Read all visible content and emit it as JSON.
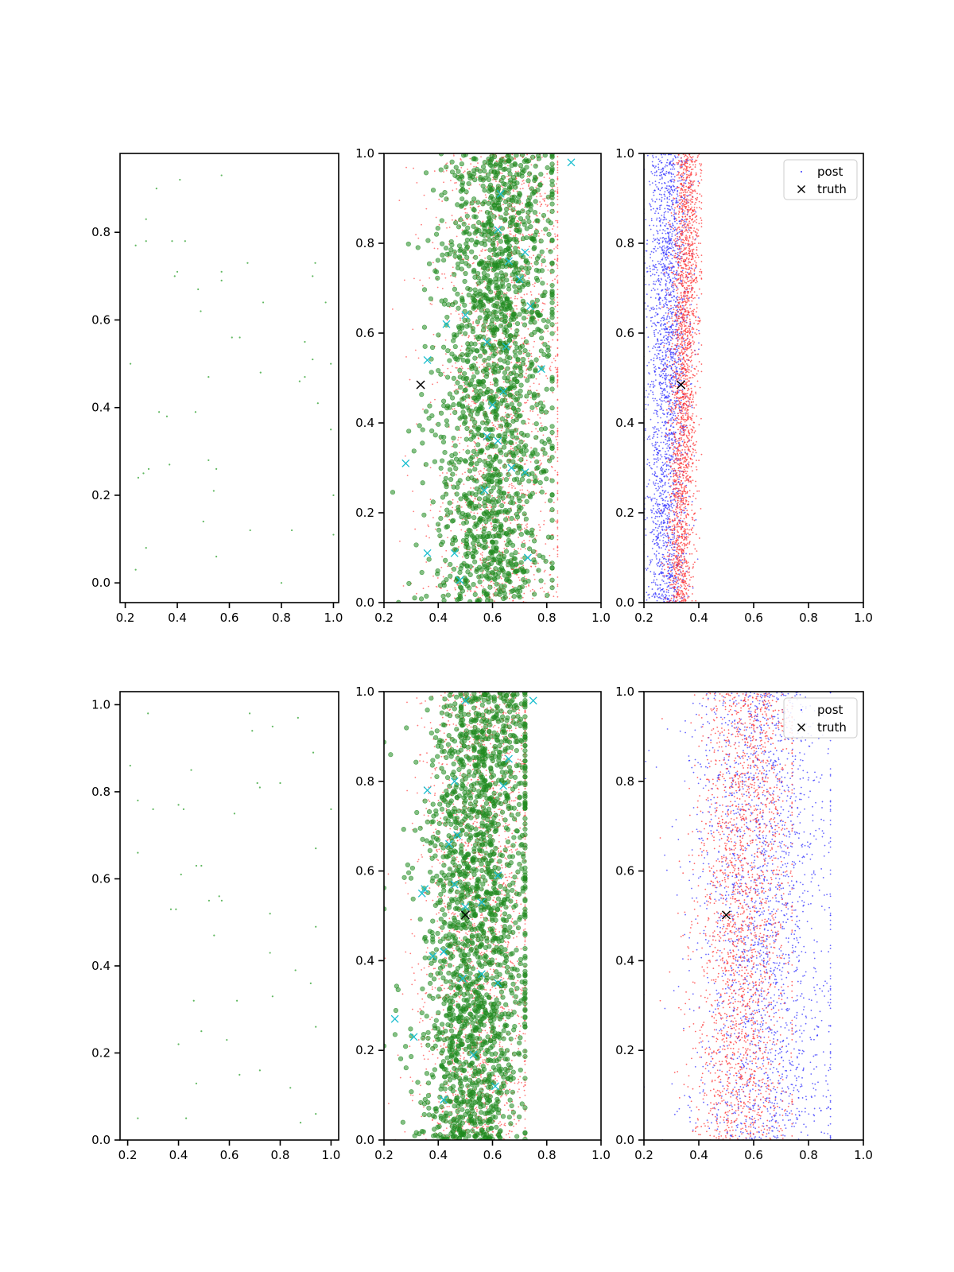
{
  "figure": {
    "grid": false
  },
  "chart_data": [
    {
      "type": "scatter",
      "panel": "top-left",
      "title": "",
      "xlabel": "",
      "ylabel": "",
      "xlim": [
        0.18,
        1.02
      ],
      "ylim": [
        -0.045,
        0.98
      ],
      "xticks": [
        "0.2",
        "0.4",
        "0.6",
        "0.8",
        "1.0"
      ],
      "yticks": [
        "0.0",
        "0.2",
        "0.4",
        "0.6",
        "0.8"
      ],
      "series": [
        {
          "color": "#2ca02c",
          "marker": "dot",
          "size": 1.1,
          "points": [
            [
              0.41,
              0.92
            ],
            [
              0.57,
              0.93
            ],
            [
              0.32,
              0.9
            ],
            [
              0.28,
              0.83
            ],
            [
              0.24,
              0.77
            ],
            [
              0.28,
              0.78
            ],
            [
              0.38,
              0.78
            ],
            [
              0.43,
              0.78
            ],
            [
              0.4,
              0.71
            ],
            [
              0.39,
              0.7
            ],
            [
              0.57,
              0.71
            ],
            [
              0.57,
              0.69
            ],
            [
              0.67,
              0.73
            ],
            [
              0.93,
              0.73
            ],
            [
              0.92,
              0.7
            ],
            [
              0.97,
              0.64
            ],
            [
              0.48,
              0.67
            ],
            [
              0.49,
              0.62
            ],
            [
              0.73,
              0.64
            ],
            [
              0.61,
              0.56
            ],
            [
              0.64,
              0.56
            ],
            [
              0.89,
              0.55
            ],
            [
              0.22,
              0.5
            ],
            [
              0.92,
              0.51
            ],
            [
              0.99,
              0.5
            ],
            [
              0.52,
              0.47
            ],
            [
              0.72,
              0.48
            ],
            [
              0.89,
              0.47
            ],
            [
              0.87,
              0.46
            ],
            [
              0.33,
              0.39
            ],
            [
              0.36,
              0.38
            ],
            [
              0.47,
              0.39
            ],
            [
              0.94,
              0.41
            ],
            [
              0.99,
              0.35
            ],
            [
              0.37,
              0.27
            ],
            [
              0.29,
              0.26
            ],
            [
              0.27,
              0.25
            ],
            [
              0.25,
              0.24
            ],
            [
              0.52,
              0.28
            ],
            [
              0.55,
              0.26
            ],
            [
              0.54,
              0.21
            ],
            [
              1.0,
              0.2
            ],
            [
              0.5,
              0.14
            ],
            [
              0.68,
              0.12
            ],
            [
              0.84,
              0.12
            ],
            [
              0.28,
              0.08
            ],
            [
              0.55,
              0.06
            ],
            [
              1.0,
              0.11
            ],
            [
              0.24,
              0.03
            ],
            [
              0.8,
              0.0
            ]
          ]
        }
      ]
    },
    {
      "type": "scatter",
      "panel": "top-middle",
      "title": "",
      "xlabel": "",
      "ylabel": "",
      "xlim": [
        0.2,
        1.0
      ],
      "ylim": [
        0.0,
        1.0
      ],
      "xticks": [
        "0.2",
        "0.4",
        "0.6",
        "0.8",
        "1.0"
      ],
      "yticks": [
        "0.0",
        "0.2",
        "0.4",
        "0.6",
        "0.8",
        "1.0"
      ],
      "series": [
        {
          "color": "#ff4d4d",
          "marker": "dot",
          "size": 0.9,
          "count": 2200,
          "distribution": {
            "x_mean_bottom": 0.62,
            "x_mean_top": 0.66,
            "x_sd": 0.13,
            "x_min": 0.2,
            "x_max": 0.84
          }
        },
        {
          "color": "#1f8a1f",
          "marker": "circle",
          "size": 2.8,
          "count": 1700,
          "distribution": {
            "x_mean_bottom": 0.58,
            "x_mean_top": 0.64,
            "x_sd": 0.11,
            "x_min": 0.2,
            "x_max": 0.82
          }
        },
        {
          "color": "#17becf",
          "marker": "x",
          "size": 4.5,
          "points": [
            [
              0.89,
              0.98
            ],
            [
              0.63,
              0.91
            ],
            [
              0.62,
              0.83
            ],
            [
              0.72,
              0.78
            ],
            [
              0.66,
              0.76
            ],
            [
              0.7,
              0.72
            ],
            [
              0.5,
              0.64
            ],
            [
              0.43,
              0.62
            ],
            [
              0.74,
              0.66
            ],
            [
              0.58,
              0.58
            ],
            [
              0.65,
              0.57
            ],
            [
              0.36,
              0.54
            ],
            [
              0.78,
              0.52
            ],
            [
              0.64,
              0.47
            ],
            [
              0.6,
              0.44
            ],
            [
              0.58,
              0.37
            ],
            [
              0.62,
              0.36
            ],
            [
              0.67,
              0.3
            ],
            [
              0.72,
              0.29
            ],
            [
              0.28,
              0.31
            ],
            [
              0.36,
              0.11
            ],
            [
              0.46,
              0.11
            ],
            [
              0.48,
              0.05
            ],
            [
              0.73,
              0.1
            ],
            [
              0.57,
              0.25
            ]
          ]
        },
        {
          "color": "#000000",
          "marker": "x",
          "size": 5,
          "points": [
            [
              0.335,
              0.485
            ]
          ]
        }
      ]
    },
    {
      "type": "scatter",
      "panel": "top-right",
      "title": "",
      "xlabel": "",
      "ylabel": "",
      "xlim": [
        0.2,
        1.0
      ],
      "ylim": [
        0.0,
        1.0
      ],
      "xticks": [
        "0.2",
        "0.4",
        "0.6",
        "0.8",
        "1.0"
      ],
      "yticks": [
        "0.0",
        "0.2",
        "0.4",
        "0.6",
        "0.8",
        "1.0"
      ],
      "legend": {
        "placement": "upper right",
        "entries": [
          "post",
          "truth"
        ]
      },
      "series": [
        {
          "name": "post",
          "color": "#3333ff",
          "marker": "dot",
          "size": 0.9,
          "count": 2200,
          "distribution": {
            "x_mean_bottom": 0.28,
            "x_mean_top": 0.29,
            "x_sd": 0.04,
            "x_min": 0.2,
            "x_max": 0.4
          }
        },
        {
          "color": "#ff3333",
          "marker": "dot",
          "size": 0.9,
          "count": 2200,
          "distribution": {
            "x_mean_bottom": 0.33,
            "x_mean_top": 0.36,
            "x_sd": 0.025,
            "x_min": 0.25,
            "x_max": 0.41
          }
        },
        {
          "name": "truth",
          "color": "#000000",
          "marker": "x",
          "size": 5,
          "points": [
            [
              0.335,
              0.485
            ]
          ]
        }
      ]
    },
    {
      "type": "scatter",
      "panel": "bottom-left",
      "title": "",
      "xlabel": "",
      "ylabel": "",
      "xlim": [
        0.17,
        1.03
      ],
      "ylim": [
        0.0,
        1.03
      ],
      "xticks": [
        "0.2",
        "0.4",
        "0.6",
        "0.8",
        "1.0"
      ],
      "yticks": [
        "0.0",
        "0.2",
        "0.4",
        "0.6",
        "0.8",
        "1.0"
      ],
      "series": [
        {
          "color": "#2ca02c",
          "marker": "dot",
          "size": 1.1,
          "points": [
            [
              0.28,
              0.98
            ],
            [
              0.68,
              0.98
            ],
            [
              0.69,
              0.94
            ],
            [
              0.77,
              0.95
            ],
            [
              0.87,
              0.97
            ],
            [
              0.21,
              0.86
            ],
            [
              0.45,
              0.85
            ],
            [
              0.24,
              0.78
            ],
            [
              0.3,
              0.76
            ],
            [
              0.4,
              0.77
            ],
            [
              0.42,
              0.76
            ],
            [
              0.62,
              0.75
            ],
            [
              0.71,
              0.82
            ],
            [
              0.72,
              0.81
            ],
            [
              0.8,
              0.82
            ],
            [
              0.93,
              0.89
            ],
            [
              1.0,
              0.76
            ],
            [
              0.94,
              0.67
            ],
            [
              0.24,
              0.66
            ],
            [
              0.47,
              0.63
            ],
            [
              0.49,
              0.63
            ],
            [
              0.41,
              0.61
            ],
            [
              0.37,
              0.53
            ],
            [
              0.39,
              0.53
            ],
            [
              0.52,
              0.55
            ],
            [
              0.56,
              0.56
            ],
            [
              0.57,
              0.55
            ],
            [
              0.54,
              0.47
            ],
            [
              0.76,
              0.52
            ],
            [
              0.94,
              0.49
            ],
            [
              0.76,
              0.43
            ],
            [
              0.86,
              0.39
            ],
            [
              0.46,
              0.32
            ],
            [
              0.63,
              0.32
            ],
            [
              0.77,
              0.33
            ],
            [
              0.92,
              0.36
            ],
            [
              0.49,
              0.25
            ],
            [
              0.94,
              0.26
            ],
            [
              0.4,
              0.22
            ],
            [
              0.59,
              0.23
            ],
            [
              0.47,
              0.13
            ],
            [
              0.64,
              0.15
            ],
            [
              0.72,
              0.16
            ],
            [
              0.84,
              0.12
            ],
            [
              0.24,
              0.05
            ],
            [
              0.43,
              0.05
            ],
            [
              0.88,
              0.04
            ],
            [
              0.94,
              0.06
            ]
          ]
        }
      ]
    },
    {
      "type": "scatter",
      "panel": "bottom-middle",
      "title": "",
      "xlabel": "",
      "ylabel": "",
      "xlim": [
        0.2,
        1.0
      ],
      "ylim": [
        0.0,
        1.0
      ],
      "xticks": [
        "0.2",
        "0.4",
        "0.6",
        "0.8",
        "1.0"
      ],
      "yticks": [
        "0.0",
        "0.2",
        "0.4",
        "0.6",
        "0.8",
        "1.0"
      ],
      "series": [
        {
          "color": "#ff4d4d",
          "marker": "dot",
          "size": 0.9,
          "count": 2300,
          "distribution": {
            "x_mean_bottom": 0.53,
            "x_mean_top": 0.58,
            "x_sd": 0.11,
            "x_min": 0.2,
            "x_max": 0.72
          }
        },
        {
          "color": "#1f8a1f",
          "marker": "circle",
          "size": 2.8,
          "count": 1900,
          "distribution": {
            "x_mean_bottom": 0.52,
            "x_mean_top": 0.57,
            "x_sd": 0.1,
            "x_min": 0.2,
            "x_max": 0.72
          }
        },
        {
          "color": "#17becf",
          "marker": "x",
          "size": 4.5,
          "points": [
            [
              0.5,
              0.98
            ],
            [
              0.75,
              0.98
            ],
            [
              0.66,
              0.85
            ],
            [
              0.36,
              0.78
            ],
            [
              0.46,
              0.8
            ],
            [
              0.64,
              0.79
            ],
            [
              0.44,
              0.66
            ],
            [
              0.47,
              0.68
            ],
            [
              0.35,
              0.56
            ],
            [
              0.34,
              0.55
            ],
            [
              0.46,
              0.57
            ],
            [
              0.5,
              0.52
            ],
            [
              0.56,
              0.53
            ],
            [
              0.62,
              0.59
            ],
            [
              0.38,
              0.41
            ],
            [
              0.42,
              0.42
            ],
            [
              0.49,
              0.36
            ],
            [
              0.56,
              0.37
            ],
            [
              0.62,
              0.35
            ],
            [
              0.24,
              0.27
            ],
            [
              0.31,
              0.23
            ],
            [
              0.42,
              0.09
            ],
            [
              0.61,
              0.12
            ],
            [
              0.53,
              0.19
            ]
          ]
        },
        {
          "color": "#000000",
          "marker": "x",
          "size": 5,
          "points": [
            [
              0.5,
              0.502
            ]
          ]
        }
      ]
    },
    {
      "type": "scatter",
      "panel": "bottom-right",
      "title": "",
      "xlabel": "",
      "ylabel": "",
      "xlim": [
        0.2,
        1.0
      ],
      "ylim": [
        0.0,
        1.0
      ],
      "xticks": [
        "0.2",
        "0.4",
        "0.6",
        "0.8",
        "1.0"
      ],
      "yticks": [
        "0.0",
        "0.2",
        "0.4",
        "0.6",
        "0.8",
        "1.0"
      ],
      "legend": {
        "placement": "upper right",
        "entries": [
          "post",
          "truth"
        ]
      },
      "series": [
        {
          "name": "post",
          "color": "#3333ff",
          "marker": "dot",
          "size": 0.9,
          "count": 2200,
          "distribution": {
            "x_mean_bottom": 0.64,
            "x_mean_top": 0.62,
            "x_sd": 0.13,
            "x_min": 0.2,
            "x_max": 0.88
          }
        },
        {
          "color": "#ff3333",
          "marker": "dot",
          "size": 0.9,
          "count": 2200,
          "distribution": {
            "x_mean_bottom": 0.54,
            "x_mean_top": 0.58,
            "x_sd": 0.09,
            "x_min": 0.25,
            "x_max": 0.74
          }
        },
        {
          "name": "truth",
          "color": "#000000",
          "marker": "x",
          "size": 5,
          "points": [
            [
              0.5,
              0.502
            ]
          ]
        }
      ]
    }
  ]
}
